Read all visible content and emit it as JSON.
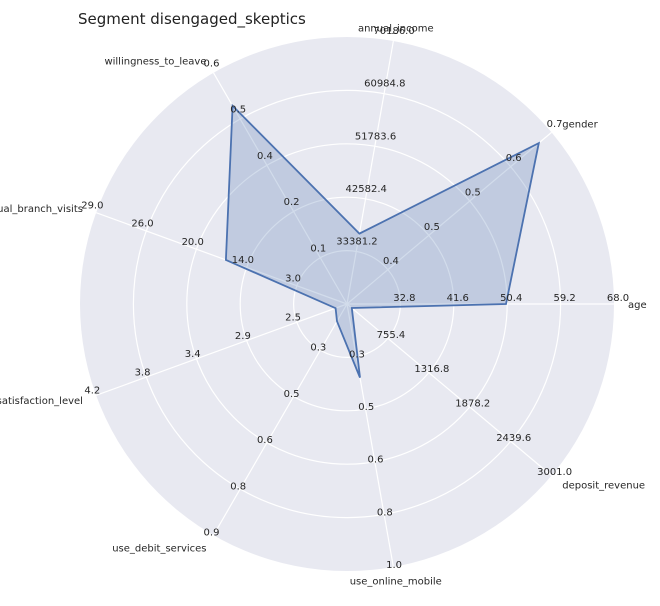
{
  "chart_data": {
    "type": "radar",
    "title": "Segment disengaged_skeptics",
    "grid": true,
    "colors": {
      "background": "#e8e9f1",
      "grid": "#ffffff",
      "series_line": "#4c72b0",
      "series_fill": "#4c72b0"
    },
    "axes": [
      {
        "name": "age",
        "ticks": [
          "32.8",
          "41.6",
          "50.4",
          "59.2",
          "68.0"
        ],
        "value": 50.2,
        "min": 24.0,
        "max": 68.0
      },
      {
        "name": "gender",
        "ticks": [
          "0.4",
          "0.5",
          "0.5",
          "0.6",
          "0.7"
        ],
        "value": 0.675,
        "min": 0.3,
        "max": 0.7
      },
      {
        "name": "annual_income",
        "ticks": [
          "33381.2",
          "42582.4",
          "51783.6",
          "60984.8",
          "70186.0"
        ],
        "value": 36500,
        "min": 24180,
        "max": 70186
      },
      {
        "name": "willingness_to_leave",
        "ticks": [
          "0.1",
          "0.2",
          "0.4",
          "0.5",
          "0.6"
        ],
        "value": 0.6,
        "min": 0.0,
        "max": 0.7
      },
      {
        "name": "annual_branch_visits",
        "ticks": [
          "3.0",
          "14.0",
          "20.0",
          "26.0",
          "29.0"
        ],
        "value": 14.0,
        "min": 0.0,
        "max": 29.0
      },
      {
        "name": "service_satisfaction_level",
        "ticks": [
          "2.5",
          "2.9",
          "3.4",
          "3.8",
          "4.2"
        ],
        "value": 2.1,
        "min": 2.0,
        "max": 4.2
      },
      {
        "name": "use_debit_services",
        "ticks": [
          "0.3",
          "0.5",
          "0.6",
          "0.8",
          "0.9"
        ],
        "value": 0.16,
        "min": 0.1,
        "max": 0.9
      },
      {
        "name": "use_online_mobile",
        "ticks": [
          "0.3",
          "0.5",
          "0.6",
          "0.8",
          "1.0"
        ],
        "value": 0.28,
        "min": 0.0,
        "max": 1.0
      },
      {
        "name": "deposit_revenue",
        "ticks": [
          "755.4",
          "1316.8",
          "1878.2",
          "2439.6",
          "3001.0"
        ],
        "value": 260,
        "min": 194,
        "max": 3001
      }
    ]
  }
}
